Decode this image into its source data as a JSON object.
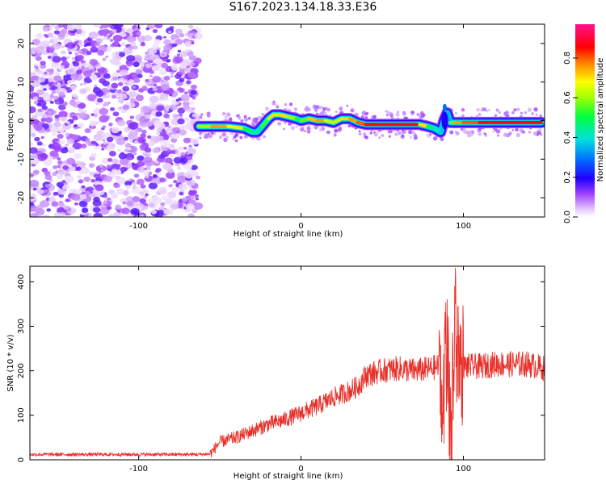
{
  "title": "S167.2023.134.18.33.E36",
  "chart_data": [
    {
      "type": "heatmap",
      "xlabel": "Height of straight line (km)",
      "ylabel": "Frequency (Hz)",
      "xlim": [
        -167,
        150
      ],
      "ylim": [
        -25,
        25
      ],
      "xticks": [
        -100,
        0,
        100
      ],
      "yticks": [
        -20,
        -10,
        0,
        10,
        20
      ],
      "colorbar": {
        "label": "Normalized spectral amplitude",
        "range": [
          0.0,
          0.97
        ],
        "ticks": [
          0.0,
          0.2,
          0.4,
          0.6,
          0.8
        ],
        "colormap": "rainbow (white-violet-blue-cyan-green-yellow-red-pink)"
      },
      "noise_region_x": [
        -167,
        -63
      ],
      "signal_ridge": {
        "x": [
          -63,
          -55,
          -45,
          -35,
          -30,
          -27,
          -24,
          -20,
          -17,
          -13,
          -8,
          -3,
          0,
          5,
          10,
          15,
          20,
          25,
          30,
          35,
          40,
          50,
          60,
          73,
          78,
          82,
          86,
          88,
          90,
          92,
          95,
          100,
          110,
          120,
          130,
          140,
          148
        ],
        "y": [
          -1.5,
          -1.5,
          -1.5,
          -2,
          -3,
          -3,
          -1.5,
          0.5,
          1.5,
          1.5,
          1,
          0.5,
          0,
          0.5,
          0,
          0,
          -0.5,
          0.5,
          0.5,
          -0.5,
          -1,
          -1,
          -1,
          -1,
          -1.5,
          -2,
          -3,
          0,
          2,
          -0.5,
          -0.5,
          -0.5,
          -0.5,
          -0.5,
          -0.5,
          -0.5,
          -0.5
        ],
        "amplitude": [
          0.45,
          0.8,
          0.75,
          0.6,
          0.45,
          0.4,
          0.5,
          0.6,
          0.7,
          0.75,
          0.7,
          0.55,
          0.5,
          0.65,
          0.85,
          0.7,
          0.6,
          0.7,
          0.75,
          0.8,
          0.85,
          0.9,
          0.92,
          0.9,
          0.55,
          0.45,
          0.4,
          0.35,
          0.3,
          0.4,
          0.75,
          0.8,
          0.85,
          0.9,
          0.9,
          0.9,
          0.85
        ]
      }
    },
    {
      "type": "line",
      "xlabel": "Height of straight line (km)",
      "ylabel": "SNR (10 * v/v)",
      "xlim": [
        -167,
        150
      ],
      "ylim": [
        0,
        435
      ],
      "xticks": [
        -100,
        0,
        100
      ],
      "yticks": [
        0,
        100,
        200,
        300,
        400
      ],
      "color": "#e8302a",
      "series": [
        {
          "x": [
            -167,
            -140,
            -110,
            -80,
            -65,
            -56,
            -50,
            -40,
            -30,
            -20,
            -10,
            0,
            10,
            20,
            30,
            35,
            40,
            50,
            60,
            70,
            80,
            85,
            88,
            90,
            92,
            95,
            97,
            100,
            110,
            120,
            130,
            140,
            150
          ],
          "y": [
            12,
            12,
            12,
            12,
            12,
            13,
            40,
            50,
            65,
            80,
            90,
            105,
            120,
            140,
            155,
            165,
            190,
            200,
            205,
            200,
            205,
            210,
            150,
            280,
            40,
            300,
            240,
            210,
            210,
            215,
            215,
            215,
            205
          ]
        }
      ]
    }
  ]
}
